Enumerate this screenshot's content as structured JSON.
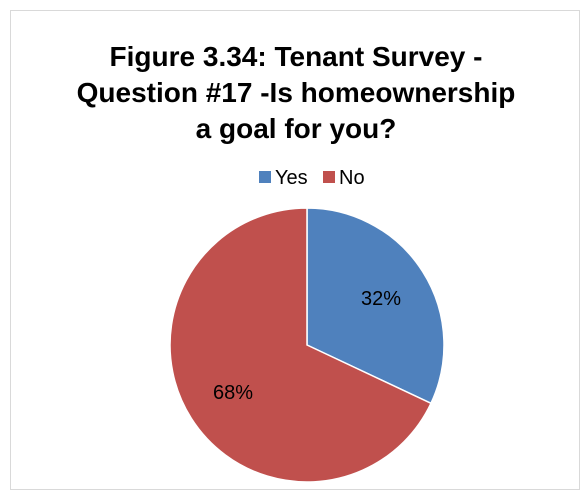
{
  "chart_data": {
    "type": "pie",
    "title": "Figure 3.34:  Tenant Survey - Question #17 -Is homeownership a goal for you?",
    "title_lines": [
      "Figure 3.34:  Tenant Survey -",
      "Question #17 -Is homeownership",
      "a goal for you?"
    ],
    "categories": [
      "Yes",
      "No"
    ],
    "values": [
      32,
      68
    ],
    "data_labels": [
      "32%",
      "68%"
    ],
    "colors": [
      "#4f81bd",
      "#c0504d"
    ],
    "legend_position": "top"
  }
}
